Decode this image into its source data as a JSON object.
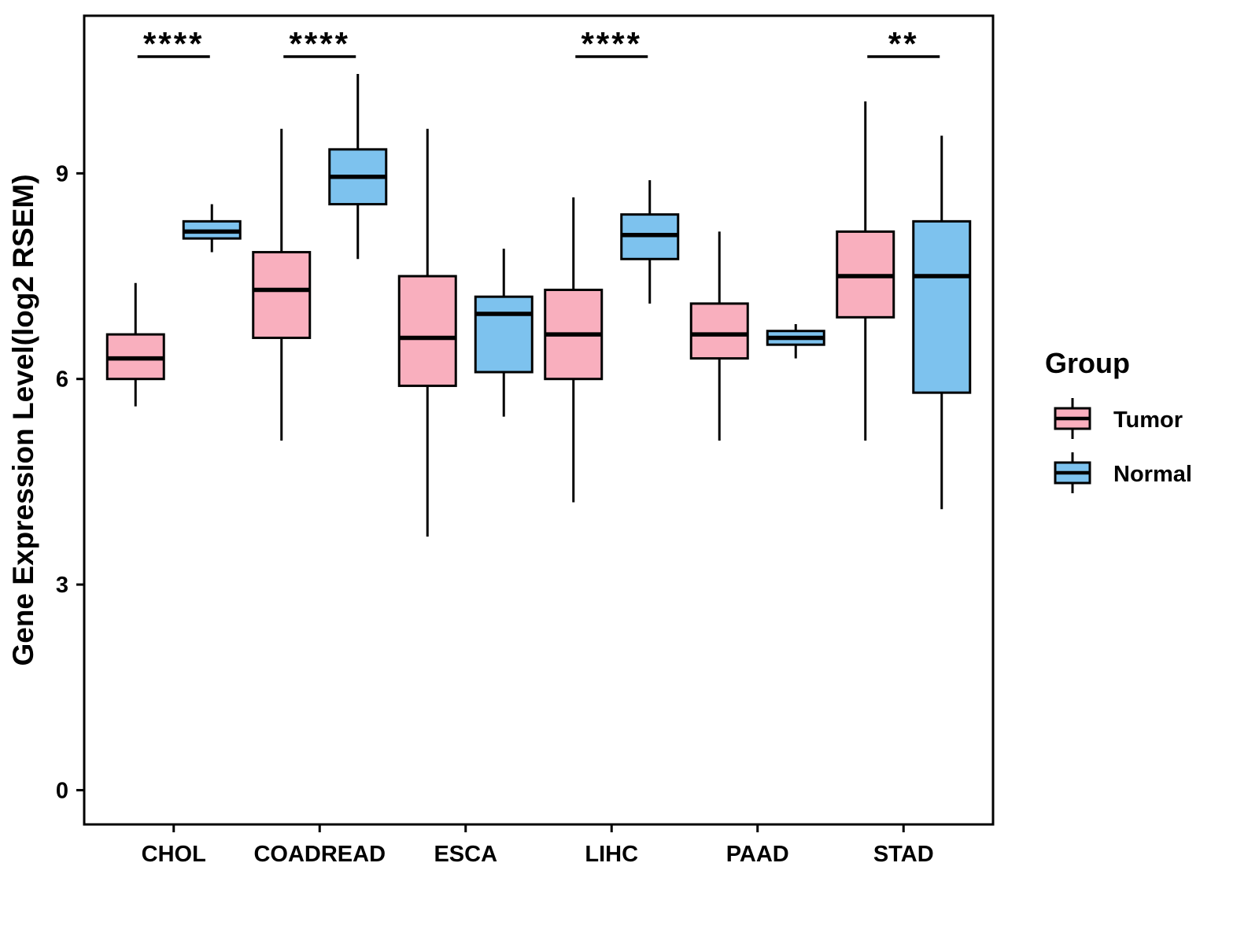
{
  "figure": {
    "ylabel": "Gene Expression Level(log2 RSEM)",
    "legend": {
      "title": "Group",
      "entries": [
        {
          "label": "Tumor",
          "color": "#F9AFBE"
        },
        {
          "label": "Normal",
          "color": "#7DC2EE"
        }
      ]
    }
  },
  "chart_data": {
    "type": "boxplot",
    "title": "",
    "ylabel": "Gene Expression Level(log2 RSEM)",
    "xlabel": "",
    "categories": [
      "CHOL",
      "COADREAD",
      "ESCA",
      "LIHC",
      "PAAD",
      "STAD"
    ],
    "groups": [
      "Tumor",
      "Normal"
    ],
    "colors": {
      "Tumor": "#F9AFBE",
      "Normal": "#7DC2EE"
    },
    "stroke_color": "#000000",
    "yticks": [
      0,
      3,
      6,
      9
    ],
    "ylim": [
      -0.5,
      11.3
    ],
    "grid": false,
    "legend_position": "right",
    "series": [
      {
        "name": "Tumor",
        "boxes": [
          {
            "category": "CHOL",
            "whisker_low": 5.6,
            "q1": 6.0,
            "median": 6.3,
            "q3": 6.65,
            "whisker_high": 7.4
          },
          {
            "category": "COADREAD",
            "whisker_low": 5.1,
            "q1": 6.6,
            "median": 7.3,
            "q3": 7.85,
            "whisker_high": 9.65
          },
          {
            "category": "ESCA",
            "whisker_low": 3.7,
            "q1": 5.9,
            "median": 6.6,
            "q3": 7.5,
            "whisker_high": 9.65
          },
          {
            "category": "LIHC",
            "whisker_low": 4.2,
            "q1": 6.0,
            "median": 6.65,
            "q3": 7.3,
            "whisker_high": 8.65
          },
          {
            "category": "PAAD",
            "whisker_low": 5.1,
            "q1": 6.3,
            "median": 6.65,
            "q3": 7.1,
            "whisker_high": 8.15
          },
          {
            "category": "STAD",
            "whisker_low": 5.1,
            "q1": 6.9,
            "median": 7.5,
            "q3": 8.15,
            "whisker_high": 10.05
          }
        ]
      },
      {
        "name": "Normal",
        "boxes": [
          {
            "category": "CHOL",
            "whisker_low": 7.85,
            "q1": 8.05,
            "median": 8.15,
            "q3": 8.3,
            "whisker_high": 8.55
          },
          {
            "category": "COADREAD",
            "whisker_low": 7.75,
            "q1": 8.55,
            "median": 8.95,
            "q3": 9.35,
            "whisker_high": 10.45
          },
          {
            "category": "ESCA",
            "whisker_low": 5.45,
            "q1": 6.1,
            "median": 6.95,
            "q3": 7.2,
            "whisker_high": 7.9
          },
          {
            "category": "LIHC",
            "whisker_low": 7.1,
            "q1": 7.75,
            "median": 8.1,
            "q3": 8.4,
            "whisker_high": 8.9
          },
          {
            "category": "PAAD",
            "whisker_low": 6.3,
            "q1": 6.5,
            "median": 6.6,
            "q3": 6.7,
            "whisker_high": 6.8
          },
          {
            "category": "STAD",
            "whisker_low": 4.1,
            "q1": 5.8,
            "median": 7.5,
            "q3": 8.3,
            "whisker_high": 9.55
          }
        ]
      }
    ],
    "significance": [
      {
        "category": "CHOL",
        "label": "****"
      },
      {
        "category": "COADREAD",
        "label": "****"
      },
      {
        "category": "LIHC",
        "label": "****"
      },
      {
        "category": "STAD",
        "label": "**"
      }
    ]
  }
}
